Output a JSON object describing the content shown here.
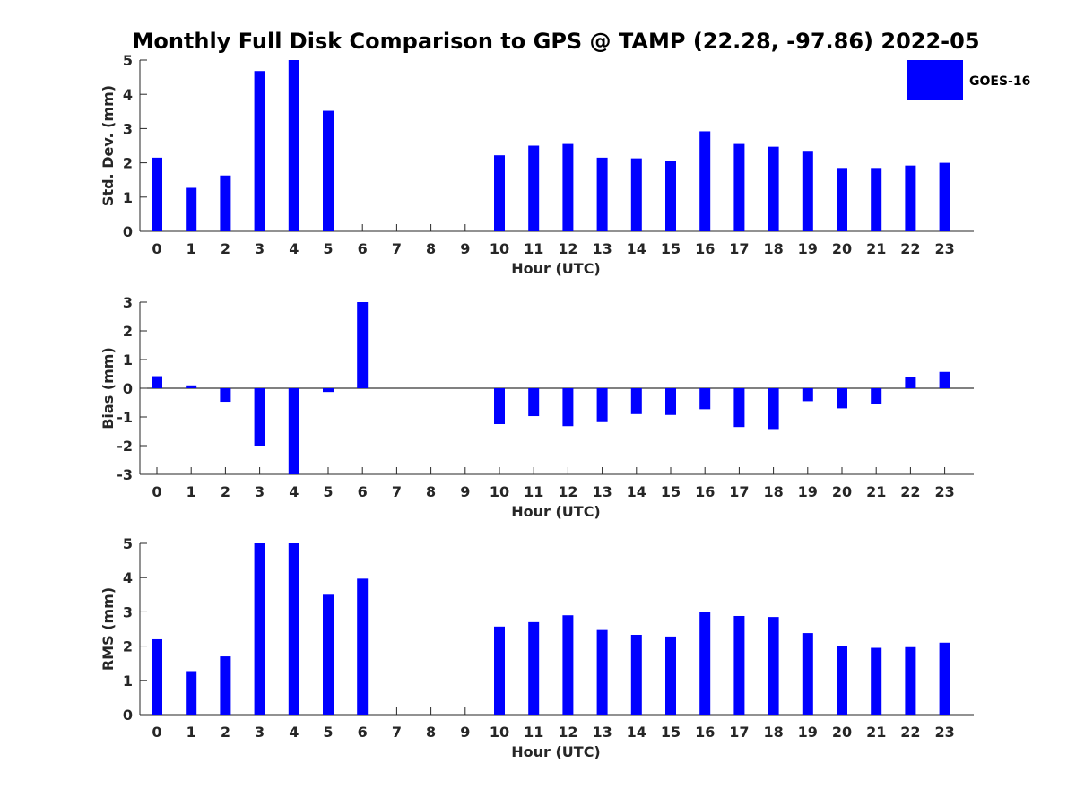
{
  "title": "Monthly Full Disk Comparison to GPS @ TAMP (22.28, -97.86) 2022-05",
  "colors": {
    "bar": "#0000ff",
    "axis": "#262626"
  },
  "legend": {
    "label": "GOES-16",
    "position": "top-right"
  },
  "chart_data": [
    {
      "type": "bar",
      "name": "std-dev",
      "xlabel": "Hour (UTC)",
      "ylabel": "Std. Dev. (mm)",
      "ylim": [
        0,
        5
      ],
      "yticks": [
        0,
        1,
        2,
        3,
        4,
        5
      ],
      "categories": [
        "0",
        "1",
        "2",
        "3",
        "4",
        "5",
        "6",
        "7",
        "8",
        "9",
        "10",
        "11",
        "12",
        "13",
        "14",
        "15",
        "16",
        "17",
        "18",
        "19",
        "20",
        "21",
        "22",
        "23"
      ],
      "series": [
        {
          "name": "GOES-16",
          "values": [
            2.15,
            1.27,
            1.63,
            4.68,
            5.0,
            3.52,
            null,
            null,
            null,
            null,
            2.22,
            2.5,
            2.55,
            2.15,
            2.13,
            2.05,
            2.92,
            2.55,
            2.47,
            2.35,
            1.85,
            1.85,
            1.92,
            2.0
          ]
        }
      ]
    },
    {
      "type": "bar",
      "name": "bias",
      "xlabel": "Hour (UTC)",
      "ylabel": "Bias (mm)",
      "ylim": [
        -3,
        3
      ],
      "yticks": [
        -3,
        -2,
        -1,
        0,
        1,
        2,
        3
      ],
      "categories": [
        "0",
        "1",
        "2",
        "3",
        "4",
        "5",
        "6",
        "7",
        "8",
        "9",
        "10",
        "11",
        "12",
        "13",
        "14",
        "15",
        "16",
        "17",
        "18",
        "19",
        "20",
        "21",
        "22",
        "23"
      ],
      "series": [
        {
          "name": "GOES-16",
          "values": [
            0.42,
            0.1,
            -0.47,
            -2.0,
            -3.0,
            -0.13,
            3.0,
            null,
            null,
            null,
            -1.25,
            -0.97,
            -1.32,
            -1.18,
            -0.9,
            -0.93,
            -0.73,
            -1.35,
            -1.42,
            -0.45,
            -0.7,
            -0.55,
            0.38,
            0.57
          ]
        }
      ]
    },
    {
      "type": "bar",
      "name": "rms",
      "xlabel": "Hour (UTC)",
      "ylabel": "RMS (mm)",
      "ylim": [
        0,
        5
      ],
      "yticks": [
        0,
        1,
        2,
        3,
        4,
        5
      ],
      "categories": [
        "0",
        "1",
        "2",
        "3",
        "4",
        "5",
        "6",
        "7",
        "8",
        "9",
        "10",
        "11",
        "12",
        "13",
        "14",
        "15",
        "16",
        "17",
        "18",
        "19",
        "20",
        "21",
        "22",
        "23"
      ],
      "series": [
        {
          "name": "GOES-16",
          "values": [
            2.2,
            1.27,
            1.7,
            5.0,
            5.0,
            3.5,
            3.97,
            null,
            null,
            null,
            2.57,
            2.7,
            2.9,
            2.47,
            2.33,
            2.28,
            3.0,
            2.88,
            2.85,
            2.38,
            2.0,
            1.95,
            1.97,
            2.1
          ]
        }
      ]
    }
  ]
}
